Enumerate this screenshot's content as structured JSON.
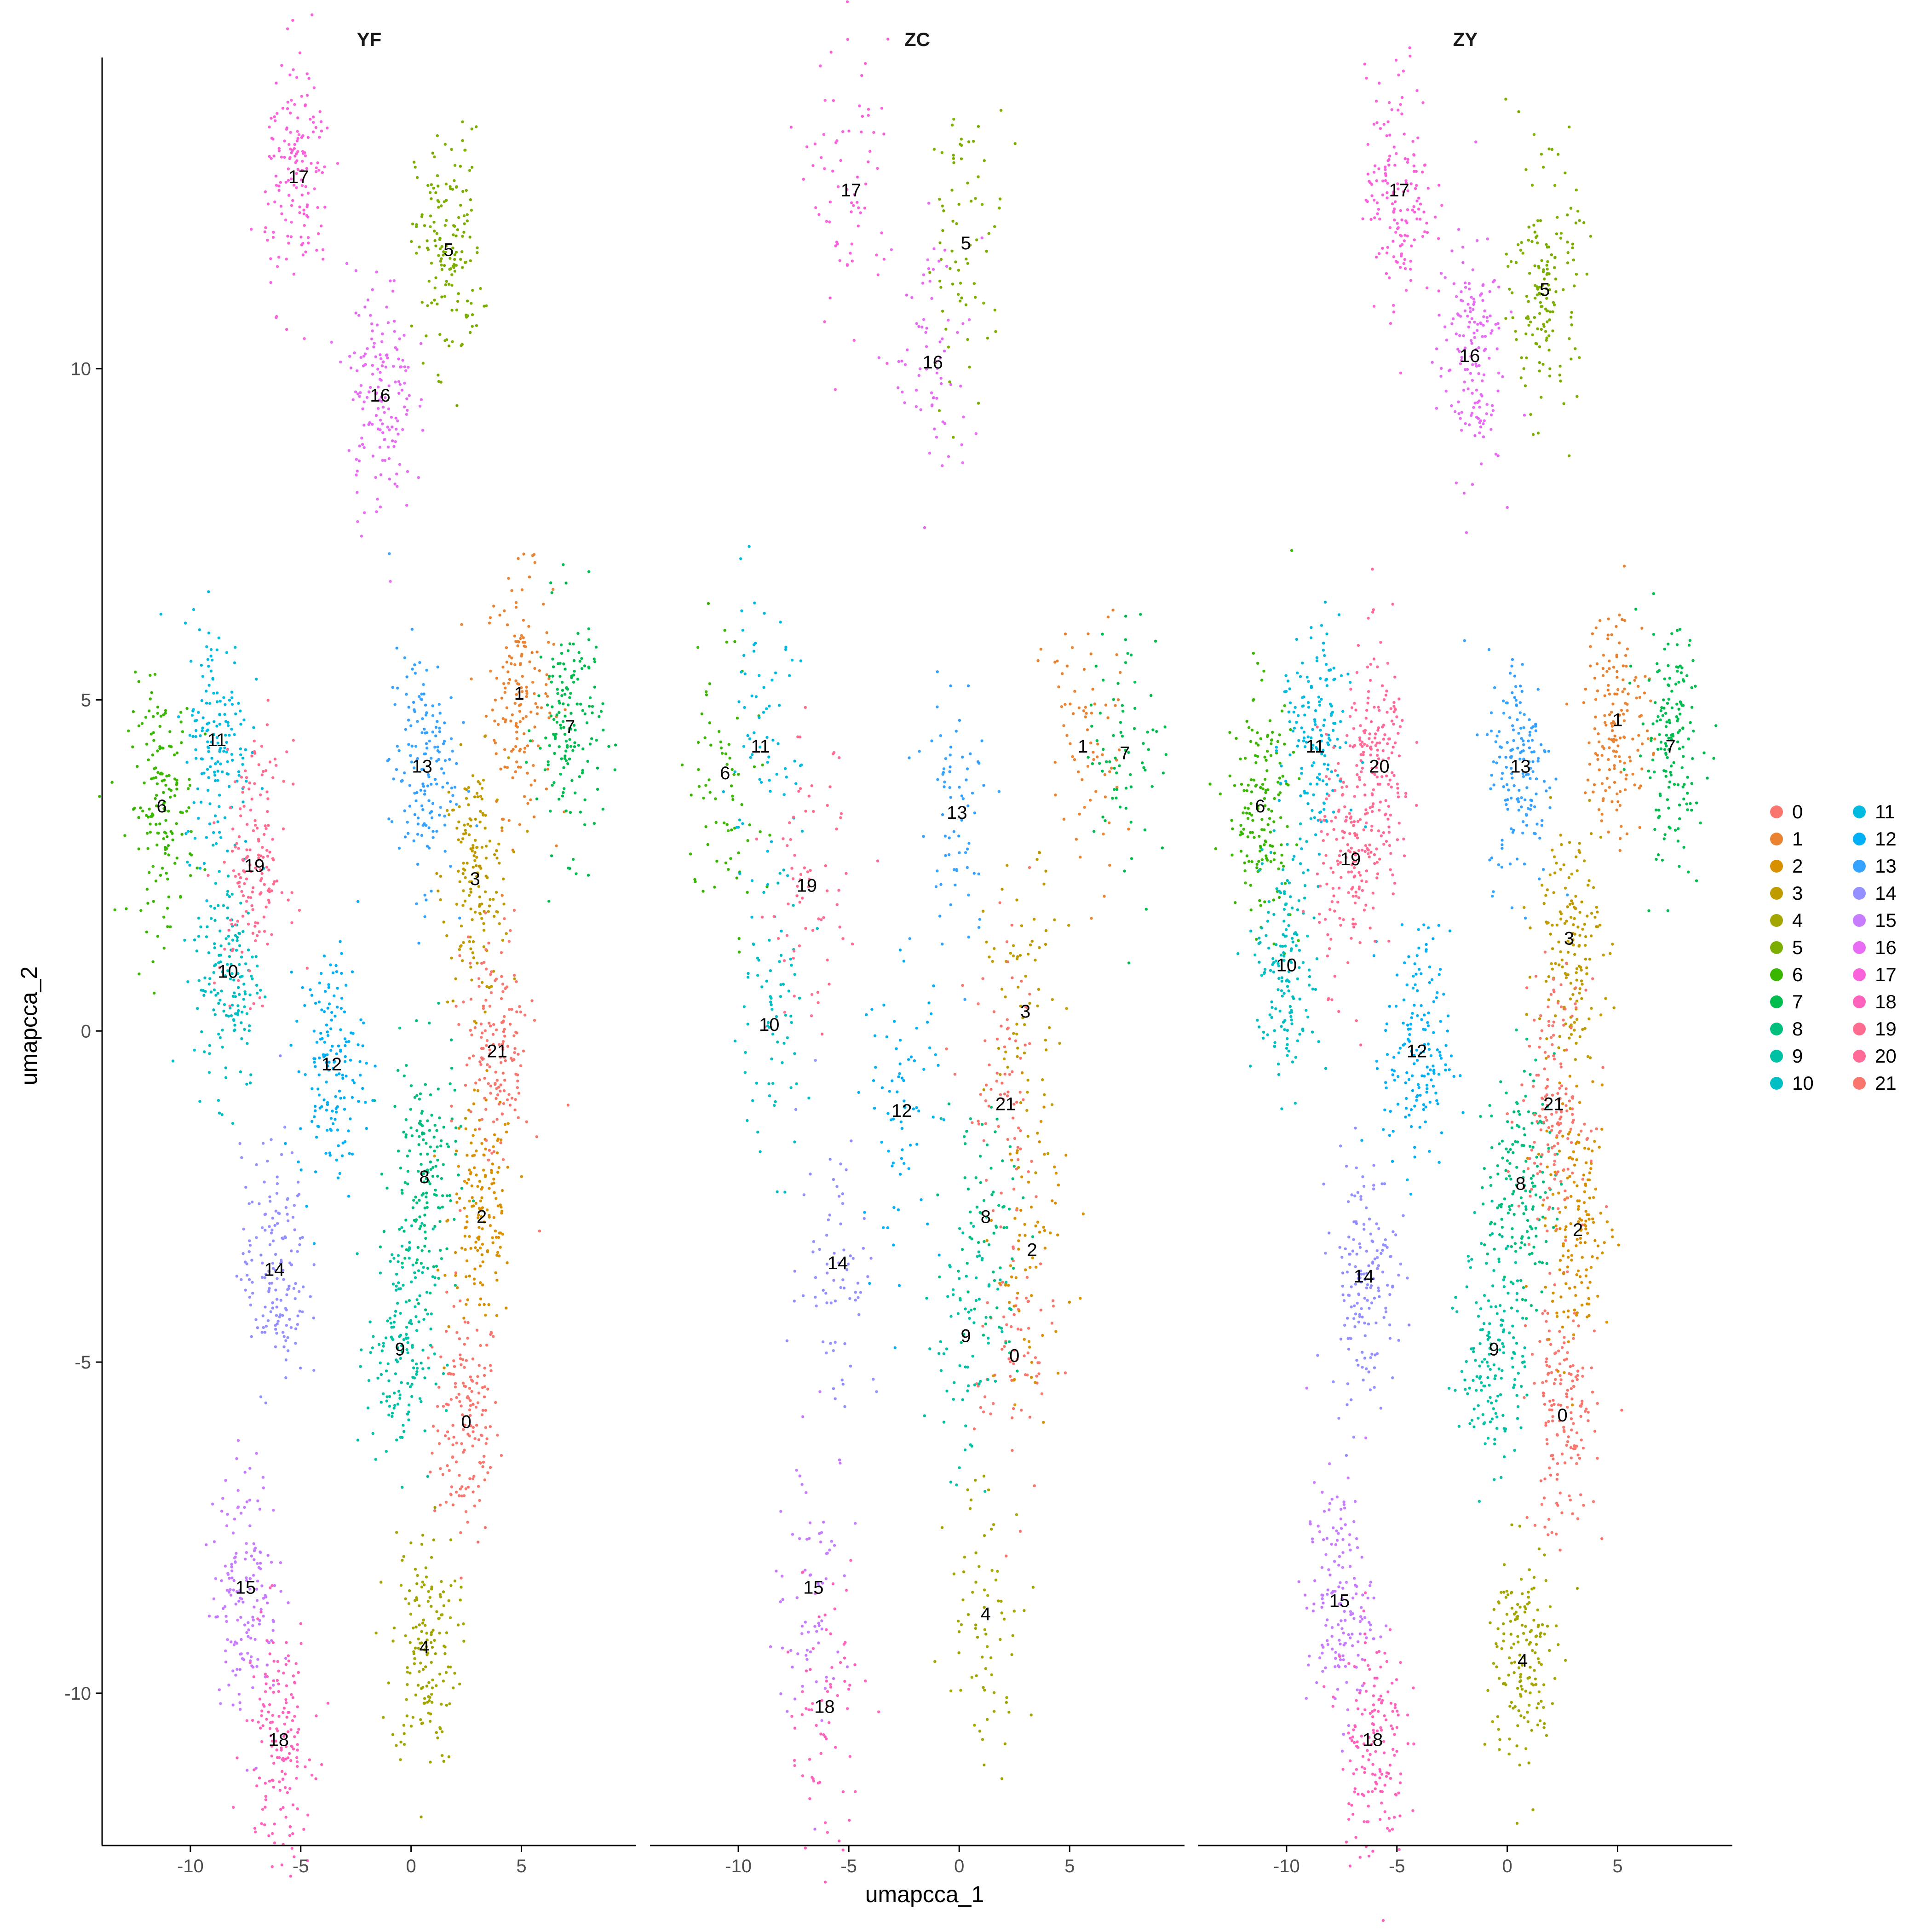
{
  "chart_data": {
    "type": "scatter",
    "title": "",
    "xlabel": "umapcca_1",
    "ylabel": "umapcca_2",
    "xlim": [
      -14,
      10.2
    ],
    "ylim": [
      -12.3,
      14.7
    ],
    "x_ticks": [
      -10,
      -5,
      0,
      5
    ],
    "x_tick_labels": [
      "-10",
      "-5",
      "0",
      "5"
    ],
    "y_ticks": [
      -10,
      -5,
      0,
      5,
      10
    ],
    "y_tick_labels": [
      "-10",
      "-5",
      "0",
      "5",
      "10"
    ],
    "grid": false,
    "legend_position": "right",
    "legend_columns": 2,
    "panels": [
      "YF",
      "ZC",
      "ZY"
    ],
    "clusters": [
      {
        "name": "0",
        "color": "#F8766D"
      },
      {
        "name": "1",
        "color": "#EA8331"
      },
      {
        "name": "2",
        "color": "#D89000"
      },
      {
        "name": "3",
        "color": "#C09B00"
      },
      {
        "name": "4",
        "color": "#A3A500"
      },
      {
        "name": "5",
        "color": "#7CAE00"
      },
      {
        "name": "6",
        "color": "#39B600"
      },
      {
        "name": "7",
        "color": "#00BB4E"
      },
      {
        "name": "8",
        "color": "#00BF7D"
      },
      {
        "name": "9",
        "color": "#00C1A3"
      },
      {
        "name": "10",
        "color": "#00BFC4"
      },
      {
        "name": "11",
        "color": "#00BAE0"
      },
      {
        "name": "12",
        "color": "#00B0F6"
      },
      {
        "name": "13",
        "color": "#35A2FF"
      },
      {
        "name": "14",
        "color": "#9590FF"
      },
      {
        "name": "15",
        "color": "#C77CFF"
      },
      {
        "name": "16",
        "color": "#E76BF3"
      },
      {
        "name": "17",
        "color": "#FA62DB"
      },
      {
        "name": "18",
        "color": "#FF62BC"
      },
      {
        "name": "19",
        "color": "#FF6C90"
      },
      {
        "name": "20",
        "color": "#FF6A98"
      },
      {
        "name": "21",
        "color": "#F8766D"
      }
    ],
    "cluster_centers": {
      "YF": [
        {
          "label": "0",
          "x": 2.5,
          "y": -5.9
        },
        {
          "label": "1",
          "x": 4.9,
          "y": 5.1
        },
        {
          "label": "2",
          "x": 3.2,
          "y": -2.8
        },
        {
          "label": "3",
          "x": 2.9,
          "y": 2.3
        },
        {
          "label": "4",
          "x": 0.6,
          "y": -9.3
        },
        {
          "label": "5",
          "x": 1.7,
          "y": 11.8
        },
        {
          "label": "6",
          "x": -11.3,
          "y": 3.4
        },
        {
          "label": "7",
          "x": 7.2,
          "y": 4.6
        },
        {
          "label": "8",
          "x": 0.6,
          "y": -2.2
        },
        {
          "label": "9",
          "x": -0.5,
          "y": -4.8
        },
        {
          "label": "10",
          "x": -8.3,
          "y": 0.9
        },
        {
          "label": "11",
          "x": -8.8,
          "y": 4.4
        },
        {
          "label": "12",
          "x": -3.6,
          "y": -0.5
        },
        {
          "label": "13",
          "x": 0.5,
          "y": 4.0
        },
        {
          "label": "14",
          "x": -6.2,
          "y": -3.6
        },
        {
          "label": "15",
          "x": -7.5,
          "y": -8.4
        },
        {
          "label": "16",
          "x": -1.4,
          "y": 9.6
        },
        {
          "label": "17",
          "x": -5.1,
          "y": 12.9
        },
        {
          "label": "18",
          "x": -6.0,
          "y": -10.7
        },
        {
          "label": "19",
          "x": -7.1,
          "y": 2.5
        },
        {
          "label": "21",
          "x": 3.9,
          "y": -0.3
        }
      ],
      "ZC": [
        {
          "label": "0",
          "x": 2.5,
          "y": -4.9
        },
        {
          "label": "1",
          "x": 5.6,
          "y": 4.3
        },
        {
          "label": "2",
          "x": 3.3,
          "y": -3.3
        },
        {
          "label": "3",
          "x": 3.0,
          "y": 0.3
        },
        {
          "label": "4",
          "x": 1.2,
          "y": -8.8
        },
        {
          "label": "5",
          "x": 0.3,
          "y": 11.9
        },
        {
          "label": "6",
          "x": -10.6,
          "y": 3.9
        },
        {
          "label": "7",
          "x": 7.5,
          "y": 4.2
        },
        {
          "label": "8",
          "x": 1.2,
          "y": -2.8
        },
        {
          "label": "9",
          "x": 0.3,
          "y": -4.6
        },
        {
          "label": "10",
          "x": -8.6,
          "y": 0.1
        },
        {
          "label": "11",
          "x": -9.0,
          "y": 4.3
        },
        {
          "label": "12",
          "x": -2.6,
          "y": -1.2
        },
        {
          "label": "13",
          "x": -0.1,
          "y": 3.3
        },
        {
          "label": "14",
          "x": -5.5,
          "y": -3.5
        },
        {
          "label": "15",
          "x": -6.6,
          "y": -8.4
        },
        {
          "label": "16",
          "x": -1.2,
          "y": 10.1
        },
        {
          "label": "17",
          "x": -4.9,
          "y": 12.7
        },
        {
          "label": "18",
          "x": -6.1,
          "y": -10.2
        },
        {
          "label": "19",
          "x": -6.9,
          "y": 2.2
        },
        {
          "label": "21",
          "x": 2.1,
          "y": -1.1
        }
      ],
      "ZY": [
        {
          "label": "0",
          "x": 2.5,
          "y": -5.8
        },
        {
          "label": "1",
          "x": 5.0,
          "y": 4.7
        },
        {
          "label": "2",
          "x": 3.2,
          "y": -3.0
        },
        {
          "label": "3",
          "x": 2.8,
          "y": 1.4
        },
        {
          "label": "4",
          "x": 0.7,
          "y": -9.5
        },
        {
          "label": "5",
          "x": 1.7,
          "y": 11.2
        },
        {
          "label": "6",
          "x": -11.2,
          "y": 3.4
        },
        {
          "label": "7",
          "x": 7.4,
          "y": 4.3
        },
        {
          "label": "8",
          "x": 0.6,
          "y": -2.3
        },
        {
          "label": "9",
          "x": -0.6,
          "y": -4.8
        },
        {
          "label": "10",
          "x": -10.0,
          "y": 1.0
        },
        {
          "label": "11",
          "x": -8.7,
          "y": 4.3
        },
        {
          "label": "12",
          "x": -4.1,
          "y": -0.3
        },
        {
          "label": "13",
          "x": 0.6,
          "y": 4.0
        },
        {
          "label": "14",
          "x": -6.5,
          "y": -3.7
        },
        {
          "label": "15",
          "x": -7.6,
          "y": -8.6
        },
        {
          "label": "16",
          "x": -1.7,
          "y": 10.2
        },
        {
          "label": "17",
          "x": -4.9,
          "y": 12.7
        },
        {
          "label": "18",
          "x": -6.1,
          "y": -10.7
        },
        {
          "label": "19",
          "x": -7.1,
          "y": 2.6
        },
        {
          "label": "20",
          "x": -5.8,
          "y": 4.0
        },
        {
          "label": "21",
          "x": 2.1,
          "y": -1.1
        }
      ]
    }
  }
}
